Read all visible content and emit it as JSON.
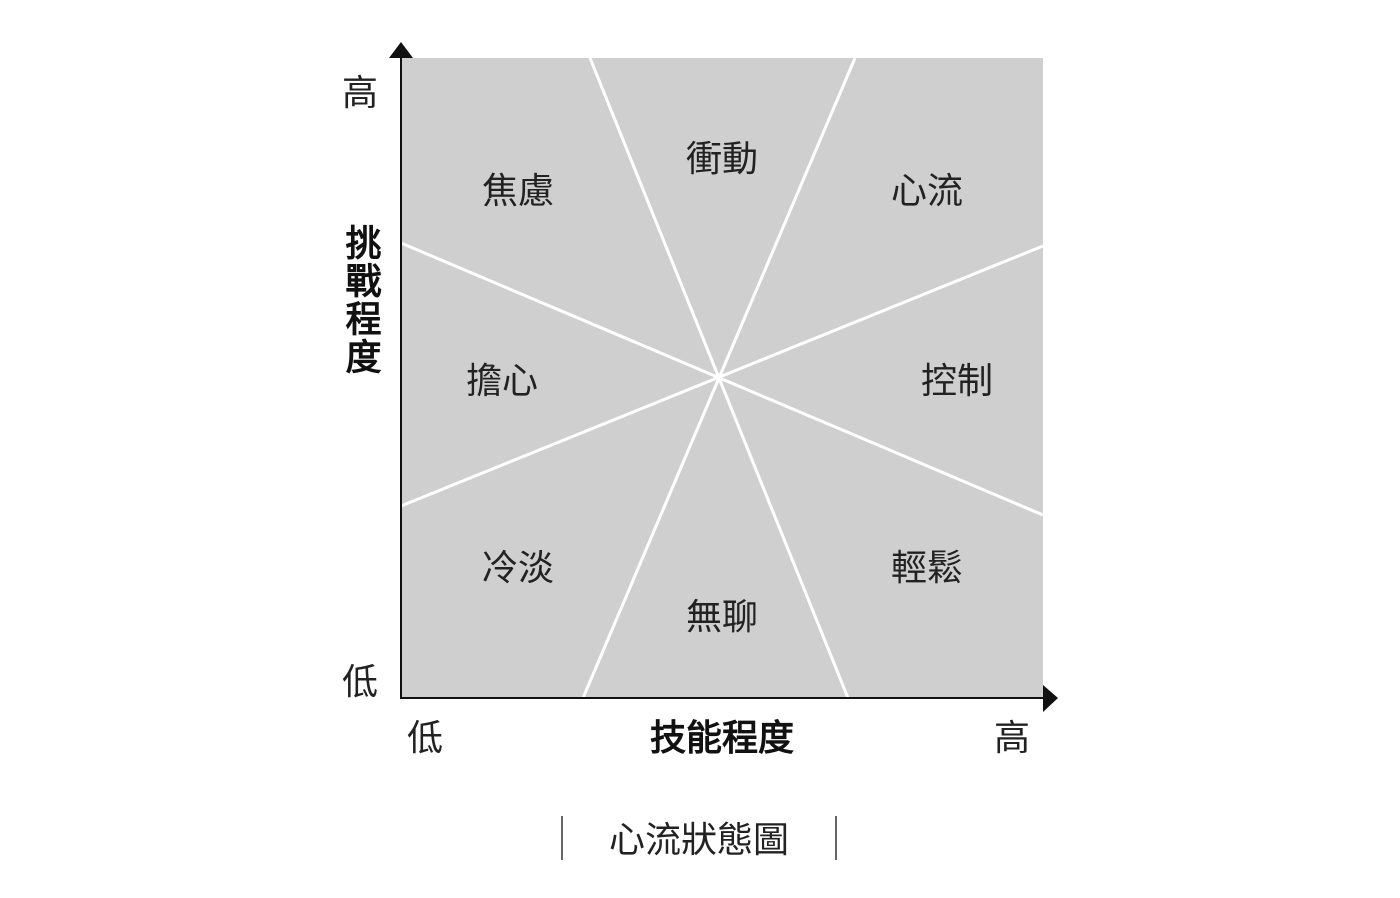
{
  "y_axis": {
    "title": "挑戰程度",
    "high": "高",
    "low": "低"
  },
  "x_axis": {
    "title": "技能程度",
    "low": "低",
    "high": "高"
  },
  "regions": [
    {
      "label": "焦慮"
    },
    {
      "label": "衝動"
    },
    {
      "label": "心流"
    },
    {
      "label": "擔心"
    },
    {
      "label": "控制"
    },
    {
      "label": "冷淡"
    },
    {
      "label": "無聊"
    },
    {
      "label": "輕鬆"
    }
  ],
  "caption": "心流狀態圖",
  "colors": {
    "fill": "#cfcfcf",
    "divider": "#ffffff",
    "axis": "#111111"
  }
}
